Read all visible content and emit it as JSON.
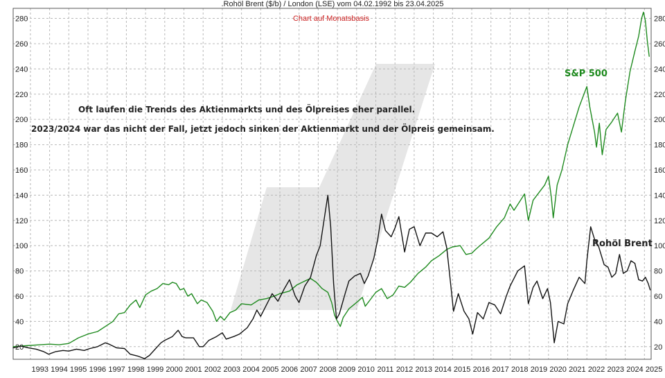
{
  "chart_data": {
    "type": "line",
    "title": ".Rohöl Brent ($/b) / London (LSE) vom 04.02.1992 bis 23.04.2025",
    "subtitle": "Chart auf Monatsbasis",
    "annotations": [
      "Oft laufen die Trends des Aktienmarkts und des Ölpreises eher parallel.",
      "2023/2024 war das nicht der Fall, jetzt jedoch sinken der Aktienmarkt und der Ölpreis gemeinsam."
    ],
    "x_ticks": [
      "1993",
      "1994",
      "1995",
      "1996",
      "1997",
      "1998",
      "1999",
      "2000",
      "2001",
      "2002",
      "2003",
      "2004",
      "2005",
      "2006",
      "2007",
      "2008",
      "2009",
      "2010",
      "2011",
      "2012",
      "2013",
      "2014",
      "2015",
      "2016",
      "2017",
      "2018",
      "2019",
      "2020",
      "2021",
      "2022",
      "2023",
      "2024",
      "2025"
    ],
    "y_ticks": [
      20,
      40,
      60,
      80,
      100,
      120,
      140,
      160,
      180,
      200,
      220,
      240,
      260,
      280
    ],
    "xlim": [
      1992.1,
      2025.35
    ],
    "ylim": [
      10,
      288
    ],
    "grid": true,
    "colors": {
      "sp500": "#1e8a1e",
      "brent": "#111111",
      "grid": "#b8b8b8",
      "subtitle": "#cc2222",
      "watermark": "#e6e6e6"
    },
    "series": [
      {
        "name": "S&P 500",
        "color": "#1e8a1e",
        "points": [
          [
            1992.1,
            20
          ],
          [
            1992.5,
            20.5
          ],
          [
            1993.0,
            21
          ],
          [
            1993.5,
            21.5
          ],
          [
            1994.0,
            22
          ],
          [
            1994.5,
            21.5
          ],
          [
            1995.0,
            22.5
          ],
          [
            1995.5,
            27
          ],
          [
            1996.0,
            30
          ],
          [
            1996.5,
            32
          ],
          [
            1997.0,
            37
          ],
          [
            1997.3,
            40
          ],
          [
            1997.6,
            46
          ],
          [
            1997.9,
            47
          ],
          [
            1998.2,
            53
          ],
          [
            1998.5,
            57
          ],
          [
            1998.7,
            51
          ],
          [
            1999.0,
            61
          ],
          [
            1999.3,
            64
          ],
          [
            1999.6,
            66
          ],
          [
            1999.9,
            70
          ],
          [
            2000.2,
            69
          ],
          [
            2000.4,
            71
          ],
          [
            2000.6,
            70
          ],
          [
            2000.8,
            65
          ],
          [
            2001.0,
            66
          ],
          [
            2001.2,
            60
          ],
          [
            2001.4,
            62
          ],
          [
            2001.7,
            54
          ],
          [
            2001.9,
            57
          ],
          [
            2002.2,
            55
          ],
          [
            2002.5,
            48
          ],
          [
            2002.7,
            40
          ],
          [
            2002.9,
            44
          ],
          [
            2003.1,
            41
          ],
          [
            2003.4,
            47
          ],
          [
            2003.7,
            49
          ],
          [
            2004.0,
            54
          ],
          [
            2004.5,
            53
          ],
          [
            2004.9,
            57
          ],
          [
            2005.3,
            58
          ],
          [
            2005.7,
            60
          ],
          [
            2006.0,
            62
          ],
          [
            2006.5,
            64
          ],
          [
            2006.9,
            69
          ],
          [
            2007.3,
            72
          ],
          [
            2007.6,
            74
          ],
          [
            2007.9,
            71
          ],
          [
            2008.2,
            66
          ],
          [
            2008.5,
            63
          ],
          [
            2008.7,
            55
          ],
          [
            2008.85,
            45
          ],
          [
            2009.0,
            40
          ],
          [
            2009.15,
            36
          ],
          [
            2009.3,
            43
          ],
          [
            2009.6,
            50
          ],
          [
            2010.0,
            55
          ],
          [
            2010.3,
            59
          ],
          [
            2010.45,
            52
          ],
          [
            2010.7,
            57
          ],
          [
            2011.0,
            63
          ],
          [
            2011.3,
            66
          ],
          [
            2011.6,
            58
          ],
          [
            2011.9,
            61
          ],
          [
            2012.2,
            68
          ],
          [
            2012.5,
            67
          ],
          [
            2012.8,
            71
          ],
          [
            2013.2,
            78
          ],
          [
            2013.6,
            83
          ],
          [
            2013.9,
            88
          ],
          [
            2014.3,
            92
          ],
          [
            2014.7,
            97
          ],
          [
            2015.0,
            99
          ],
          [
            2015.4,
            100
          ],
          [
            2015.7,
            93
          ],
          [
            2016.0,
            94
          ],
          [
            2016.2,
            97
          ],
          [
            2016.5,
            101
          ],
          [
            2016.9,
            106
          ],
          [
            2017.3,
            115
          ],
          [
            2017.7,
            122
          ],
          [
            2018.0,
            133
          ],
          [
            2018.2,
            128
          ],
          [
            2018.5,
            135
          ],
          [
            2018.75,
            141
          ],
          [
            2018.95,
            120
          ],
          [
            2019.2,
            136
          ],
          [
            2019.5,
            142
          ],
          [
            2019.8,
            148
          ],
          [
            2020.0,
            155
          ],
          [
            2020.15,
            138
          ],
          [
            2020.25,
            122
          ],
          [
            2020.45,
            148
          ],
          [
            2020.7,
            160
          ],
          [
            2021.0,
            180
          ],
          [
            2021.3,
            195
          ],
          [
            2021.6,
            210
          ],
          [
            2021.9,
            222
          ],
          [
            2022.0,
            226
          ],
          [
            2022.15,
            210
          ],
          [
            2022.4,
            190
          ],
          [
            2022.5,
            178
          ],
          [
            2022.65,
            197
          ],
          [
            2022.8,
            172
          ],
          [
            2023.0,
            192
          ],
          [
            2023.3,
            198
          ],
          [
            2023.6,
            205
          ],
          [
            2023.8,
            190
          ],
          [
            2024.0,
            214
          ],
          [
            2024.25,
            238
          ],
          [
            2024.5,
            254
          ],
          [
            2024.7,
            266
          ],
          [
            2024.85,
            280
          ],
          [
            2024.95,
            285
          ],
          [
            2025.05,
            278
          ],
          [
            2025.15,
            262
          ],
          [
            2025.25,
            250
          ]
        ]
      },
      {
        "name": "Rohöl Brent",
        "color": "#111111",
        "points": [
          [
            1992.1,
            19
          ],
          [
            1992.5,
            20.5
          ],
          [
            1992.9,
            19
          ],
          [
            1993.3,
            18
          ],
          [
            1993.7,
            16
          ],
          [
            1993.95,
            14
          ],
          [
            1994.3,
            16
          ],
          [
            1994.7,
            17
          ],
          [
            1995.0,
            16.5
          ],
          [
            1995.4,
            18
          ],
          [
            1995.8,
            17
          ],
          [
            1996.1,
            18.5
          ],
          [
            1996.5,
            20
          ],
          [
            1996.9,
            23
          ],
          [
            1997.1,
            22
          ],
          [
            1997.5,
            19
          ],
          [
            1997.9,
            18.5
          ],
          [
            1998.2,
            14
          ],
          [
            1998.6,
            12.5
          ],
          [
            1998.95,
            10.5
          ],
          [
            1999.2,
            13
          ],
          [
            1999.5,
            18
          ],
          [
            1999.8,
            23
          ],
          [
            2000.0,
            25
          ],
          [
            2000.4,
            28
          ],
          [
            2000.7,
            33
          ],
          [
            2000.9,
            28
          ],
          [
            2001.1,
            27
          ],
          [
            2001.5,
            27
          ],
          [
            2001.8,
            20
          ],
          [
            2002.0,
            20
          ],
          [
            2002.3,
            25
          ],
          [
            2002.7,
            28
          ],
          [
            2003.0,
            31
          ],
          [
            2003.2,
            26
          ],
          [
            2003.6,
            28
          ],
          [
            2003.9,
            30
          ],
          [
            2004.3,
            35
          ],
          [
            2004.6,
            42
          ],
          [
            2004.8,
            49
          ],
          [
            2005.0,
            44
          ],
          [
            2005.3,
            53
          ],
          [
            2005.6,
            62
          ],
          [
            2005.9,
            56
          ],
          [
            2006.2,
            65
          ],
          [
            2006.5,
            73
          ],
          [
            2006.8,
            60
          ],
          [
            2007.0,
            55
          ],
          [
            2007.3,
            68
          ],
          [
            2007.6,
            75
          ],
          [
            2007.9,
            92
          ],
          [
            2008.1,
            100
          ],
          [
            2008.35,
            125
          ],
          [
            2008.5,
            140
          ],
          [
            2008.65,
            115
          ],
          [
            2008.8,
            70
          ],
          [
            2008.95,
            42
          ],
          [
            2009.1,
            46
          ],
          [
            2009.4,
            62
          ],
          [
            2009.6,
            72
          ],
          [
            2009.9,
            76
          ],
          [
            2010.2,
            78
          ],
          [
            2010.4,
            70
          ],
          [
            2010.6,
            76
          ],
          [
            2010.9,
            90
          ],
          [
            2011.1,
            105
          ],
          [
            2011.3,
            125
          ],
          [
            2011.5,
            112
          ],
          [
            2011.8,
            107
          ],
          [
            2012.0,
            114
          ],
          [
            2012.2,
            123
          ],
          [
            2012.5,
            95
          ],
          [
            2012.75,
            113
          ],
          [
            2013.0,
            115
          ],
          [
            2013.3,
            100
          ],
          [
            2013.6,
            110
          ],
          [
            2013.9,
            110
          ],
          [
            2014.2,
            107
          ],
          [
            2014.5,
            111
          ],
          [
            2014.7,
            98
          ],
          [
            2014.9,
            70
          ],
          [
            2015.05,
            48
          ],
          [
            2015.3,
            62
          ],
          [
            2015.6,
            48
          ],
          [
            2015.85,
            42
          ],
          [
            2016.05,
            30
          ],
          [
            2016.3,
            47
          ],
          [
            2016.6,
            42
          ],
          [
            2016.9,
            55
          ],
          [
            2017.2,
            53
          ],
          [
            2017.5,
            46
          ],
          [
            2017.8,
            60
          ],
          [
            2018.0,
            68
          ],
          [
            2018.4,
            80
          ],
          [
            2018.75,
            84
          ],
          [
            2018.95,
            54
          ],
          [
            2019.2,
            67
          ],
          [
            2019.4,
            72
          ],
          [
            2019.7,
            58
          ],
          [
            2019.95,
            66
          ],
          [
            2020.1,
            55
          ],
          [
            2020.3,
            23
          ],
          [
            2020.5,
            40
          ],
          [
            2020.8,
            38
          ],
          [
            2021.0,
            54
          ],
          [
            2021.3,
            65
          ],
          [
            2021.6,
            75
          ],
          [
            2021.9,
            70
          ],
          [
            2022.0,
            88
          ],
          [
            2022.2,
            115
          ],
          [
            2022.4,
            105
          ],
          [
            2022.6,
            100
          ],
          [
            2022.9,
            85
          ],
          [
            2023.1,
            83
          ],
          [
            2023.3,
            75
          ],
          [
            2023.5,
            78
          ],
          [
            2023.7,
            93
          ],
          [
            2023.9,
            78
          ],
          [
            2024.1,
            80
          ],
          [
            2024.3,
            88
          ],
          [
            2024.5,
            86
          ],
          [
            2024.7,
            73
          ],
          [
            2024.9,
            72
          ],
          [
            2025.05,
            75
          ],
          [
            2025.2,
            70
          ],
          [
            2025.3,
            65
          ]
        ]
      }
    ]
  }
}
